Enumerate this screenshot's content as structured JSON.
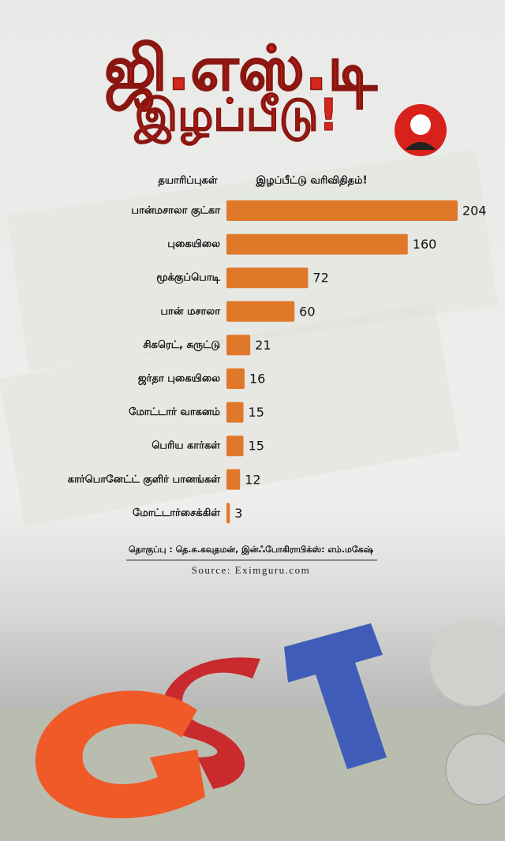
{
  "chart_data": {
    "type": "bar",
    "title": "ஜி.எஸ்.டி",
    "subtitle": "இழப்பீடு!",
    "category_header": "தயாரிப்புகள்",
    "value_header": "இழப்பீட்டு வரிவிதிதம்!",
    "categories": [
      "பான்மசாலா குட்கா",
      "புகையிலை",
      "மூக்குப்பொடி",
      "பான் மசாலா",
      "சிகரெட், சுருட்டு",
      "ஜர்தா புகையிலை",
      "மோட்டார் வாகனம்",
      "பெரிய கார்கள்",
      "கார்பொனேட்ட் குளிர் பானங்கள்",
      "மோட்டார்சைக்கிள்"
    ],
    "values": [
      204,
      160,
      72,
      60,
      21,
      16,
      15,
      15,
      12,
      3
    ],
    "color": "#e0782a"
  },
  "credit": "தொகுப்பு : தெ.சு.கவுதமன், இன்ஃபோகிராபிக்ஸ்: எம்.மகேஷ்",
  "source": "Source: Eximguru.com"
}
